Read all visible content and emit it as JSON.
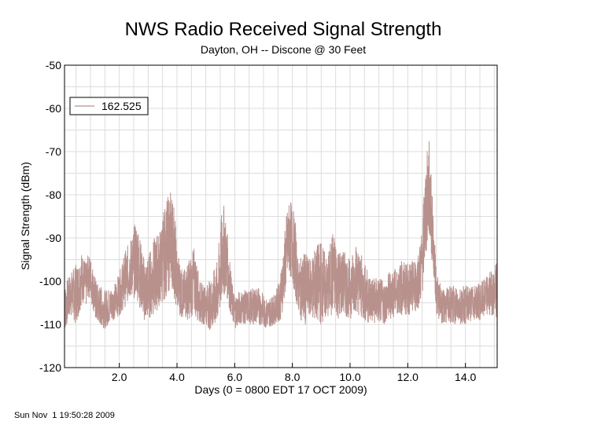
{
  "chart_data": {
    "type": "line",
    "title": "NWS Radio Received Signal Strength",
    "subtitle": "Dayton, OH -- Discone @ 30 Feet",
    "xlabel": "Days (0 = 0800 EDT 17 OCT 2009)",
    "ylabel": "Signal Strength (dBm)",
    "xlim": [
      0.1,
      15.1
    ],
    "ylim": [
      -120,
      -50
    ],
    "x_ticks": [
      {
        "value": 2,
        "label": "2.0"
      },
      {
        "value": 4,
        "label": "4.0"
      },
      {
        "value": 6,
        "label": "6.0"
      },
      {
        "value": 8,
        "label": "8.0"
      },
      {
        "value": 10,
        "label": "10.0"
      },
      {
        "value": 12,
        "label": "12.0"
      },
      {
        "value": 14,
        "label": "14.0"
      }
    ],
    "y_ticks": [
      {
        "value": -50,
        "label": "-50"
      },
      {
        "value": -60,
        "label": "-60"
      },
      {
        "value": -70,
        "label": "-70"
      },
      {
        "value": -80,
        "label": "-80"
      },
      {
        "value": -90,
        "label": "-90"
      },
      {
        "value": -100,
        "label": "-100"
      },
      {
        "value": -110,
        "label": "-110"
      },
      {
        "value": -120,
        "label": "-120"
      }
    ],
    "grid": true,
    "legend": "top-left",
    "series": [
      {
        "name": "162.525",
        "color": "#b8918d",
        "envelope": {
          "x": [
            0.1,
            0.3,
            0.5,
            0.6,
            0.7,
            0.85,
            0.9,
            1.0,
            1.2,
            1.5,
            1.8,
            2.0,
            2.2,
            2.4,
            2.6,
            2.8,
            2.9,
            3.0,
            3.2,
            3.4,
            3.6,
            3.7,
            3.8,
            3.9,
            4.0,
            4.2,
            4.4,
            4.6,
            4.8,
            5.0,
            5.2,
            5.4,
            5.5,
            5.6,
            5.7,
            5.8,
            5.9,
            6.0,
            6.2,
            6.5,
            6.8,
            7.1,
            7.4,
            7.6,
            7.8,
            7.9,
            8.0,
            8.1,
            8.2,
            8.4,
            8.6,
            8.8,
            9.0,
            9.2,
            9.4,
            9.6,
            9.8,
            10.0,
            10.2,
            10.4,
            10.6,
            10.8,
            11.0,
            11.2,
            11.4,
            11.6,
            11.8,
            12.0,
            12.2,
            12.4,
            12.5,
            12.6,
            12.7,
            12.75,
            12.8,
            12.9,
            13.0,
            13.2,
            13.5,
            13.8,
            14.0,
            14.3,
            14.6,
            14.8,
            15.0,
            15.1
          ],
          "max": [
            -101,
            -98,
            -96,
            -95,
            -93,
            -96,
            -94,
            -94,
            -100,
            -102,
            -101,
            -98,
            -93,
            -90,
            -85,
            -93,
            -95,
            -94,
            -90,
            -88,
            -82,
            -80,
            -78,
            -82,
            -92,
            -98,
            -95,
            -92,
            -100,
            -101,
            -99,
            -95,
            -87,
            -81,
            -86,
            -92,
            -100,
            -103,
            -102,
            -102,
            -101,
            -104,
            -103,
            -98,
            -84,
            -81,
            -82,
            -86,
            -96,
            -93,
            -95,
            -92,
            -90,
            -95,
            -88,
            -92,
            -93,
            -95,
            -91,
            -94,
            -97,
            -99,
            -99,
            -100,
            -97,
            -97,
            -95,
            -96,
            -95,
            -92,
            -87,
            -74,
            -68,
            -67,
            -73,
            -87,
            -98,
            -102,
            -101,
            -101,
            -101,
            -101,
            -100,
            -98,
            -97,
            -95
          ],
          "min": [
            -112,
            -108,
            -110,
            -108,
            -105,
            -106,
            -104,
            -104,
            -110,
            -111,
            -109,
            -108,
            -106,
            -104,
            -104,
            -108,
            -110,
            -109,
            -108,
            -106,
            -104,
            -103,
            -101,
            -104,
            -107,
            -109,
            -109,
            -108,
            -110,
            -110,
            -112,
            -110,
            -108,
            -104,
            -103,
            -106,
            -109,
            -111,
            -110,
            -110,
            -110,
            -111,
            -110,
            -109,
            -102,
            -99,
            -100,
            -104,
            -107,
            -111,
            -108,
            -110,
            -110,
            -109,
            -108,
            -109,
            -108,
            -109,
            -107,
            -109,
            -110,
            -110,
            -110,
            -110,
            -109,
            -108,
            -108,
            -108,
            -108,
            -106,
            -104,
            -96,
            -92,
            -91,
            -94,
            -99,
            -108,
            -110,
            -110,
            -110,
            -110,
            -109,
            -109,
            -108,
            -108,
            -110
          ]
        }
      }
    ]
  },
  "footer": {
    "timestamp": "Sun Nov  1 19:50:28 2009"
  }
}
